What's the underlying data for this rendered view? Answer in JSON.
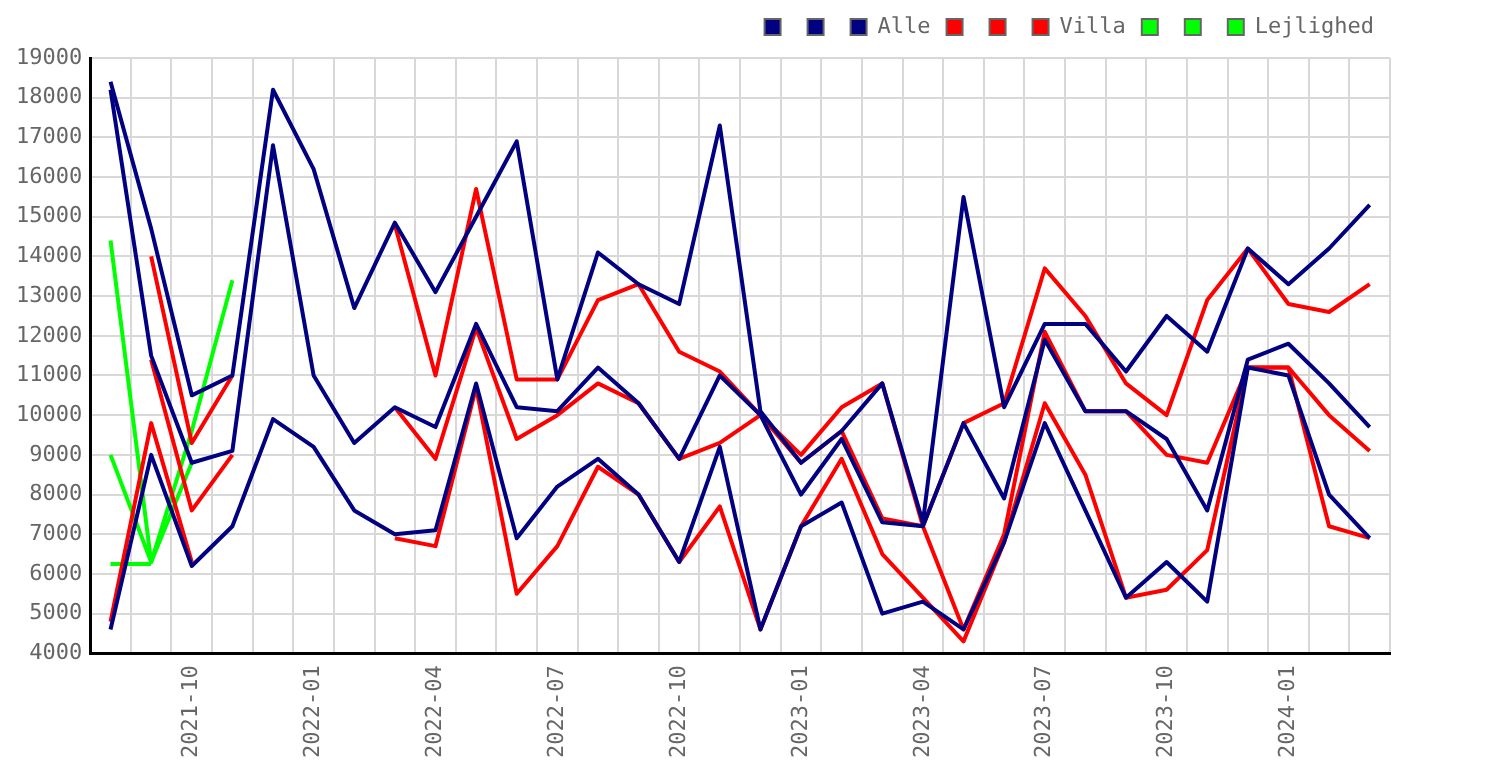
{
  "chart_data": {
    "type": "line",
    "categories": [
      null,
      null,
      "2021-10",
      null,
      null,
      "2022-01",
      null,
      null,
      "2022-04",
      null,
      null,
      "2022-07",
      null,
      null,
      "2022-10",
      null,
      null,
      "2023-01",
      null,
      null,
      "2023-04",
      null,
      null,
      "2023-07",
      null,
      null,
      "2023-10",
      null,
      null,
      "2024-01",
      null,
      null
    ],
    "series": [
      {
        "color": "#000080",
        "values": [
          18400,
          14700,
          10500,
          11000,
          18200,
          16200,
          12700,
          14850,
          13100,
          15000,
          16900,
          10900,
          14100,
          13300,
          12800,
          17300,
          10100,
          8800,
          9600,
          10800,
          7300,
          15500,
          10200,
          12300,
          12300,
          11100,
          12500,
          11600,
          14200,
          13300,
          14200,
          15300
        ]
      },
      {
        "color": "#000080",
        "values": [
          18200,
          11500,
          8800,
          9100,
          16800,
          11000,
          9300,
          10200,
          9700,
          12300,
          10200,
          10100,
          11200,
          10300,
          8900,
          11000,
          10000,
          8000,
          9400,
          7300,
          7200,
          9800,
          7900,
          11900,
          10100,
          10100,
          9400,
          7600,
          11400,
          11800,
          10800,
          9700
        ]
      },
      {
        "name": "Alle",
        "color": "#000080",
        "values": [
          4600,
          9000,
          6200,
          7200,
          9900,
          9200,
          7600,
          7000,
          7100,
          10800,
          6900,
          8200,
          8900,
          8000,
          6300,
          9200,
          4600,
          7200,
          7800,
          5000,
          5300,
          4600,
          6800,
          9800,
          7600,
          5400,
          6300,
          5300,
          11200,
          11000,
          8000,
          6900
        ]
      },
      {
        "color": "#ff0000",
        "values": [
          null,
          14000,
          9300,
          11000,
          null,
          null,
          null,
          14800,
          11000,
          15700,
          10900,
          10900,
          12900,
          13300,
          11600,
          11100,
          10000,
          9000,
          10200,
          10800,
          7200,
          9800,
          10300,
          13700,
          12500,
          10800,
          10000,
          12900,
          14200,
          12800,
          12600,
          13300
        ]
      },
      {
        "color": "#ff0000",
        "values": [
          null,
          11400,
          7600,
          9000,
          null,
          null,
          null,
          10200,
          8900,
          12200,
          9400,
          10000,
          10800,
          10300,
          8900,
          9300,
          10000,
          8800,
          9600,
          7400,
          7200,
          4600,
          7000,
          12100,
          10100,
          10100,
          9000,
          8800,
          11200,
          11200,
          10000,
          9100
        ]
      },
      {
        "name": "Villa",
        "color": "#ff0000",
        "values": [
          4800,
          9800,
          6300,
          null,
          null,
          null,
          null,
          6900,
          6700,
          10700,
          5500,
          6700,
          8700,
          8000,
          6300,
          7700,
          4600,
          7200,
          8900,
          6500,
          5400,
          4300,
          6800,
          10300,
          8500,
          5400,
          5600,
          6600,
          11200,
          11200,
          7200,
          6900
        ]
      },
      {
        "color": "#00ff00",
        "values": [
          14400,
          6300,
          9600,
          13400,
          null,
          null,
          null,
          null,
          null,
          null,
          null,
          null,
          null,
          null,
          null,
          null,
          null,
          null,
          null,
          null,
          null,
          null,
          null,
          null,
          null,
          null,
          null,
          null,
          null,
          null,
          null,
          null
        ]
      },
      {
        "color": "#00ff00",
        "values": [
          9000,
          6300,
          8800,
          null,
          null,
          null,
          null,
          null,
          null,
          null,
          null,
          null,
          null,
          null,
          null,
          null,
          null,
          null,
          null,
          null,
          null,
          null,
          null,
          null,
          null,
          null,
          null,
          null,
          null,
          null,
          null,
          null
        ]
      },
      {
        "name": "Lejlighed",
        "color": "#00ff00",
        "values": [
          6250,
          6250,
          null,
          null,
          null,
          null,
          null,
          null,
          null,
          null,
          null,
          null,
          null,
          null,
          null,
          null,
          null,
          null,
          null,
          null,
          null,
          null,
          null,
          null,
          null,
          null,
          null,
          null,
          null,
          null,
          null,
          null
        ]
      }
    ],
    "ylim": [
      4000,
      19000
    ],
    "yticks": [
      4000,
      5000,
      6000,
      7000,
      8000,
      9000,
      10000,
      11000,
      12000,
      13000,
      14000,
      15000,
      16000,
      17000,
      18000,
      19000
    ],
    "grid": true,
    "legend": "top right",
    "marker": "none"
  }
}
